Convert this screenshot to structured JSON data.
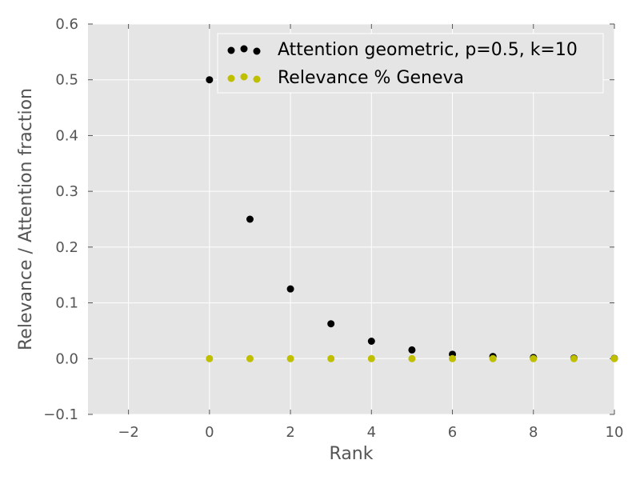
{
  "chart_data": {
    "type": "scatter",
    "title": "",
    "xlabel": "Rank",
    "ylabel": "Relevance / Attention fraction",
    "xlim": [
      -3,
      10
    ],
    "ylim": [
      -0.1,
      0.6
    ],
    "xticks": [
      -2,
      0,
      2,
      4,
      6,
      8,
      10
    ],
    "xtick_labels": [
      "−2",
      "0",
      "2",
      "4",
      "6",
      "8",
      "10"
    ],
    "yticks": [
      -0.1,
      0.0,
      0.1,
      0.2,
      0.3,
      0.4,
      0.5,
      0.6
    ],
    "ytick_labels": [
      "−0.1",
      "0.0",
      "0.1",
      "0.2",
      "0.3",
      "0.4",
      "0.5",
      "0.6"
    ],
    "grid": true,
    "background_color": "#e5e5e5",
    "legend_position": "upper-right",
    "series": [
      {
        "name": "Attention geometric, p=0.5, k=10",
        "color": "#000000",
        "x": [
          0,
          1,
          2,
          3,
          4,
          5,
          6,
          7,
          8,
          9,
          10
        ],
        "y": [
          0.5,
          0.25,
          0.125,
          0.0625,
          0.03125,
          0.015625,
          0.0078125,
          0.00390625,
          0.001953125,
          0.0009765625,
          0.00048828125
        ]
      },
      {
        "name": "Relevance % Geneva",
        "color": "#bfbf00",
        "x": [
          0,
          1,
          2,
          3,
          4,
          5,
          6,
          7,
          8,
          9,
          10
        ],
        "y": [
          0,
          0,
          0,
          0,
          0,
          0,
          0,
          0,
          0,
          0,
          0
        ]
      }
    ]
  }
}
